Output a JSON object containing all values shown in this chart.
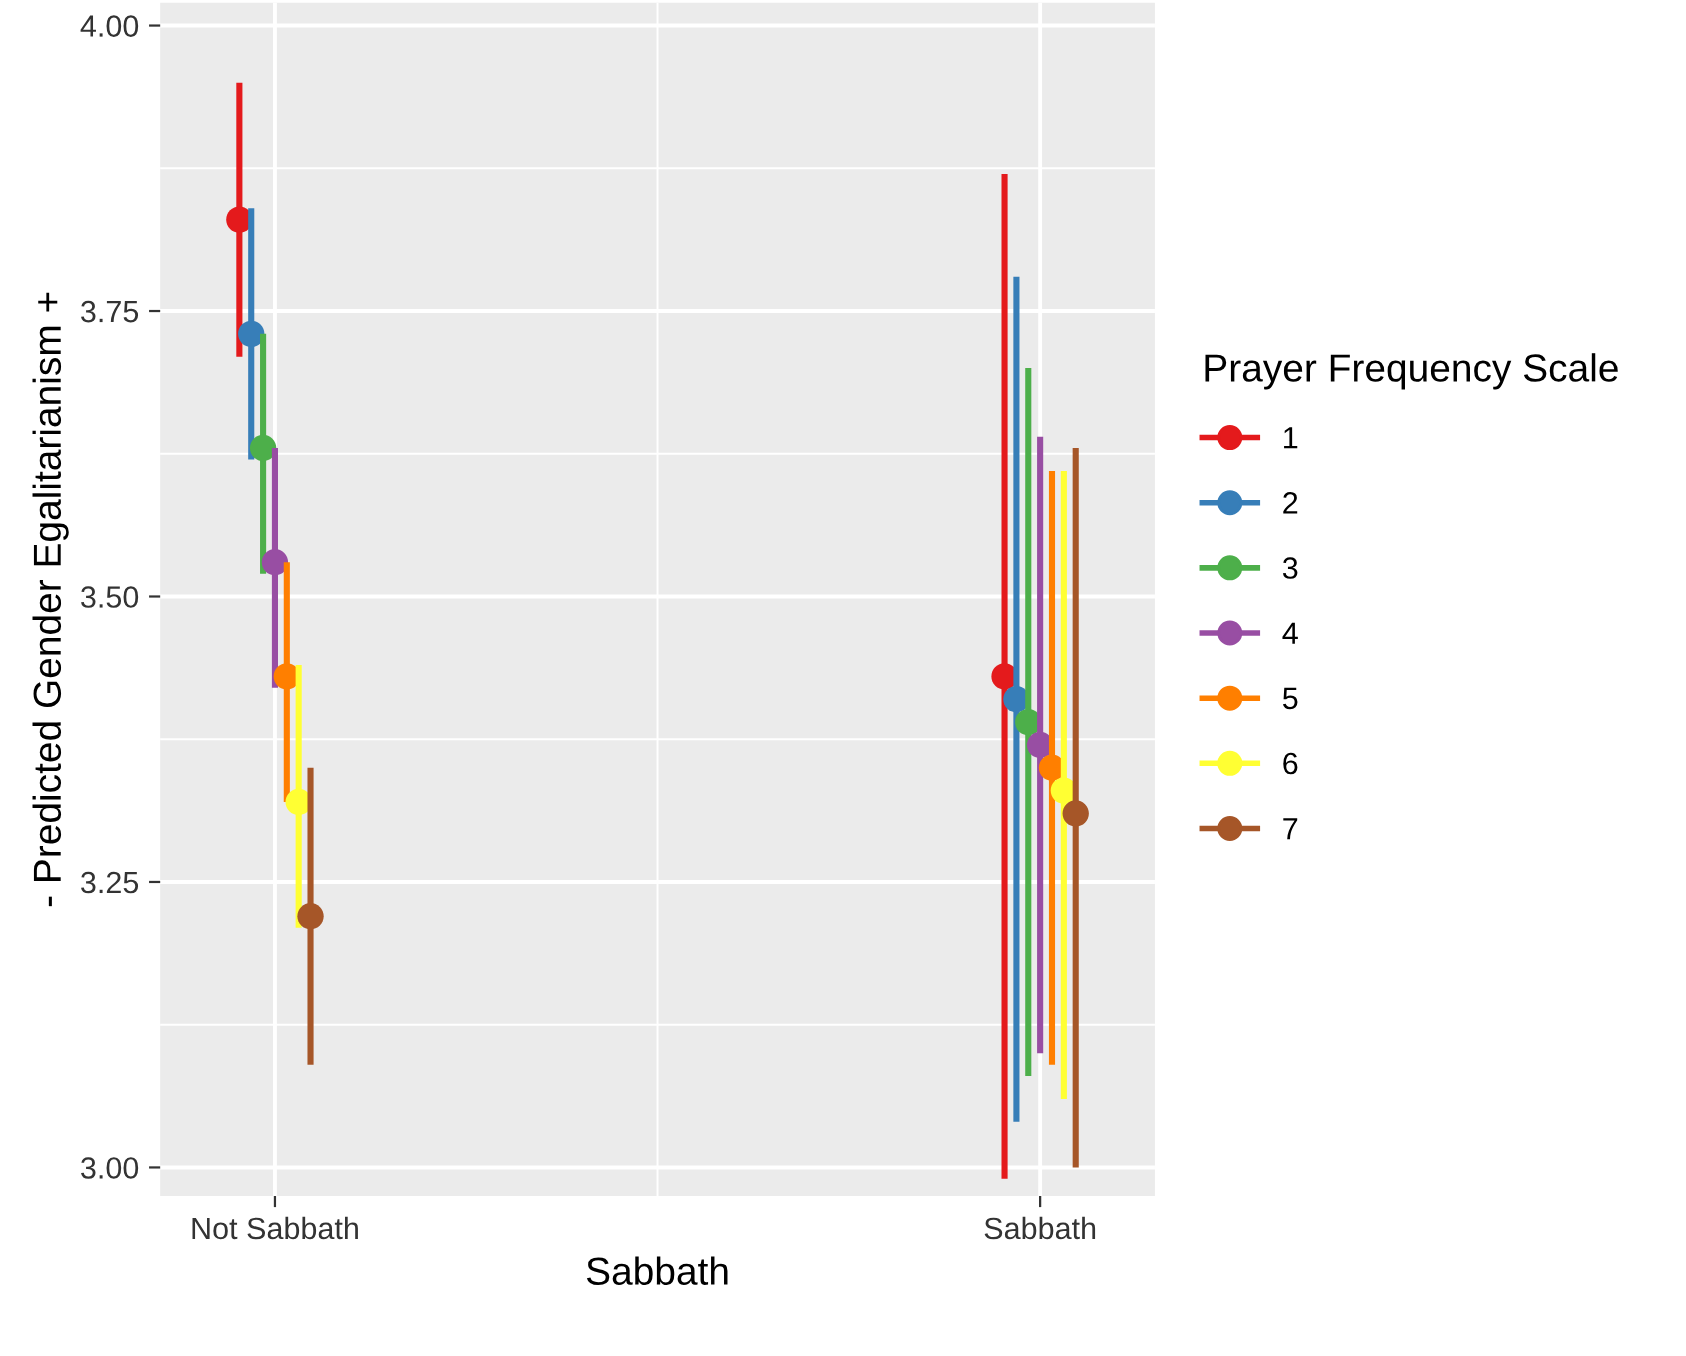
{
  "chart_data": {
    "type": "scatter",
    "xlabel": "Sabbath",
    "ylabel": "- Predicted Gender Egalitarianism +",
    "legend_title": "Prayer Frequency Scale",
    "categories": [
      "Not Sabbath",
      "Sabbath"
    ],
    "series": [
      {
        "name": "1",
        "color": "#e41a1c",
        "values": [
          3.83,
          3.43
        ],
        "errors": [
          [
            3.71,
            3.95
          ],
          [
            2.99,
            3.87
          ]
        ]
      },
      {
        "name": "2",
        "color": "#377eb8",
        "values": [
          3.73,
          3.41
        ],
        "errors": [
          [
            3.62,
            3.84
          ],
          [
            3.04,
            3.78
          ]
        ]
      },
      {
        "name": "3",
        "color": "#4daf4a",
        "values": [
          3.63,
          3.39
        ],
        "errors": [
          [
            3.52,
            3.73
          ],
          [
            3.08,
            3.7
          ]
        ]
      },
      {
        "name": "4",
        "color": "#984ea3",
        "values": [
          3.53,
          3.37
        ],
        "errors": [
          [
            3.42,
            3.63
          ],
          [
            3.1,
            3.64
          ]
        ]
      },
      {
        "name": "5",
        "color": "#ff7f00",
        "values": [
          3.43,
          3.35
        ],
        "errors": [
          [
            3.32,
            3.53
          ],
          [
            3.09,
            3.61
          ]
        ]
      },
      {
        "name": "6",
        "color": "#ffff33",
        "values": [
          3.32,
          3.33
        ],
        "errors": [
          [
            3.21,
            3.44
          ],
          [
            3.06,
            3.61
          ]
        ]
      },
      {
        "name": "7",
        "color": "#a65628",
        "values": [
          3.22,
          3.31
        ],
        "errors": [
          [
            3.09,
            3.35
          ],
          [
            3.0,
            3.63
          ]
        ]
      }
    ],
    "ylim": [
      2.975,
      4.02
    ],
    "yticks": [
      {
        "value": 3.0,
        "label": "3.00"
      },
      {
        "value": 3.25,
        "label": "3.25"
      },
      {
        "value": 3.5,
        "label": "3.50"
      },
      {
        "value": 3.75,
        "label": "3.75"
      },
      {
        "value": 4.0,
        "label": "4.00"
      }
    ],
    "grid": true,
    "legend": "right",
    "marker": "circle"
  }
}
